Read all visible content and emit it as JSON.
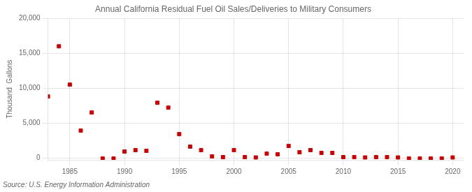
{
  "chart_data": {
    "type": "scatter",
    "title": "Annual California Residual Fuel Oil Sales/Deliveries to Military Consumers",
    "ylabel": "Thousand  Gallons",
    "annotations": [
      "Source: U.S. Energy Information Administration"
    ],
    "x": [
      1983,
      1984,
      1985,
      1986,
      1987,
      1988,
      1989,
      1990,
      1991,
      1992,
      1993,
      1994,
      1995,
      1996,
      1997,
      1998,
      1999,
      2000,
      2001,
      2002,
      2003,
      2004,
      2005,
      2006,
      2007,
      2008,
      2009,
      2010,
      2011,
      2012,
      2013,
      2014,
      2015,
      2016,
      2017,
      2018,
      2019,
      2020
    ],
    "values": [
      8800,
      16000,
      10500,
      3900,
      6500,
      -100,
      -100,
      900,
      1100,
      1000,
      7900,
      7200,
      3400,
      1600,
      1100,
      200,
      100,
      1100,
      100,
      50,
      600,
      500,
      1700,
      800,
      1100,
      700,
      700,
      100,
      100,
      50,
      100,
      100,
      50,
      -100,
      -100,
      -100,
      -100,
      50
    ],
    "color": "#cc0000",
    "marker": "square",
    "xlim": [
      1983,
      2021
    ],
    "ylim": [
      -300,
      20000
    ],
    "xticks": [
      1985,
      1990,
      1995,
      2000,
      2005,
      2010,
      2015,
      2020
    ],
    "yticks": [
      0,
      {
        "value": 5000,
        "label": "5,000"
      },
      {
        "value": 10000,
        "label": "10,000"
      },
      {
        "value": 15000,
        "label": "15,000"
      },
      {
        "value": 20000,
        "label": "20,000"
      }
    ],
    "grid": true
  }
}
